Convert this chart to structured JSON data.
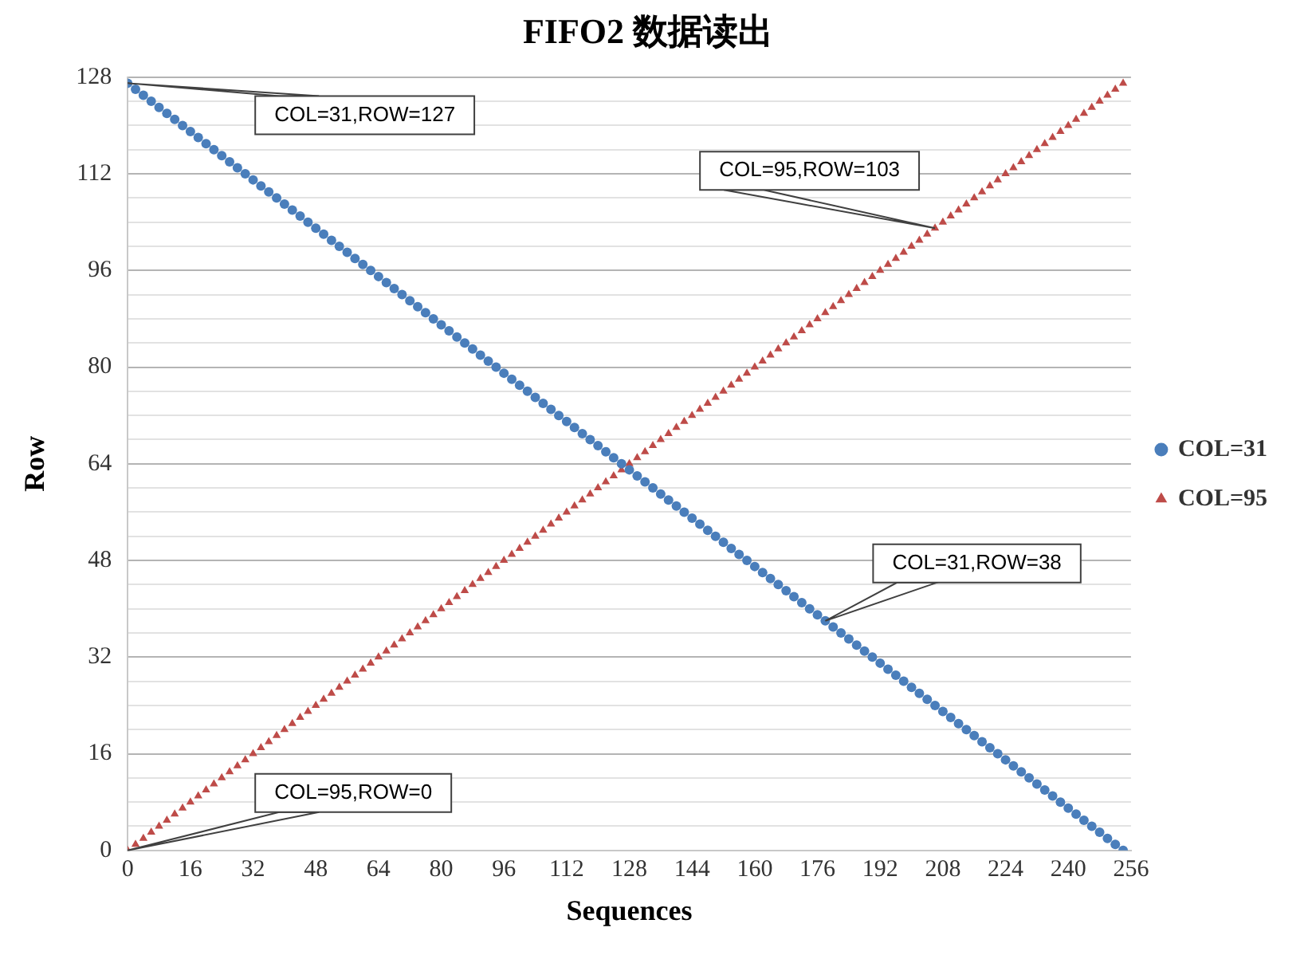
{
  "chart_data": {
    "type": "scatter",
    "title": "FIFO2 数据读出",
    "xlabel": "Sequences",
    "ylabel": "Row",
    "x": [
      0,
      2,
      4,
      6,
      8,
      10,
      12,
      14,
      16,
      18,
      20,
      22,
      24,
      26,
      28,
      30,
      32,
      34,
      36,
      38,
      40,
      42,
      44,
      46,
      48,
      50,
      52,
      54,
      56,
      58,
      60,
      62,
      64,
      66,
      68,
      70,
      72,
      74,
      76,
      78,
      80,
      82,
      84,
      86,
      88,
      90,
      92,
      94,
      96,
      98,
      100,
      102,
      104,
      106,
      108,
      110,
      112,
      114,
      116,
      118,
      120,
      122,
      124,
      126,
      128,
      130,
      132,
      134,
      136,
      138,
      140,
      142,
      144,
      146,
      148,
      150,
      152,
      154,
      156,
      158,
      160,
      162,
      164,
      166,
      168,
      170,
      172,
      174,
      176,
      178,
      180,
      182,
      184,
      186,
      188,
      190,
      192,
      194,
      196,
      198,
      200,
      202,
      204,
      206,
      208,
      210,
      212,
      214,
      216,
      218,
      220,
      222,
      224,
      226,
      228,
      230,
      232,
      234,
      236,
      238,
      240,
      242,
      244,
      246,
      248,
      250,
      252,
      254
    ],
    "series": [
      {
        "name": "COL=31",
        "color": "#4a7ebb",
        "marker": "circle",
        "values": [
          127,
          126,
          125,
          124,
          123,
          122,
          121,
          120,
          119,
          118,
          117,
          116,
          115,
          114,
          113,
          112,
          111,
          110,
          109,
          108,
          107,
          106,
          105,
          104,
          103,
          102,
          101,
          100,
          99,
          98,
          97,
          96,
          95,
          94,
          93,
          92,
          91,
          90,
          89,
          88,
          87,
          86,
          85,
          84,
          83,
          82,
          81,
          80,
          79,
          78,
          77,
          76,
          75,
          74,
          73,
          72,
          71,
          70,
          69,
          68,
          67,
          66,
          65,
          64,
          63,
          62,
          61,
          60,
          59,
          58,
          57,
          56,
          55,
          54,
          53,
          52,
          51,
          50,
          49,
          48,
          47,
          46,
          45,
          44,
          43,
          42,
          41,
          40,
          39,
          38,
          37,
          36,
          35,
          34,
          33,
          32,
          31,
          30,
          29,
          28,
          27,
          26,
          25,
          24,
          23,
          22,
          21,
          20,
          19,
          18,
          17,
          16,
          15,
          14,
          13,
          12,
          11,
          10,
          9,
          8,
          7,
          6,
          5,
          4,
          3,
          2,
          1,
          0
        ]
      },
      {
        "name": "COL=95",
        "color": "#be4b48",
        "marker": "triangle",
        "values": [
          0,
          1,
          2,
          3,
          4,
          5,
          6,
          7,
          8,
          9,
          10,
          11,
          12,
          13,
          14,
          15,
          16,
          17,
          18,
          19,
          20,
          21,
          22,
          23,
          24,
          25,
          26,
          27,
          28,
          29,
          30,
          31,
          32,
          33,
          34,
          35,
          36,
          37,
          38,
          39,
          40,
          41,
          42,
          43,
          44,
          45,
          46,
          47,
          48,
          49,
          50,
          51,
          52,
          53,
          54,
          55,
          56,
          57,
          58,
          59,
          60,
          61,
          62,
          63,
          64,
          65,
          66,
          67,
          68,
          69,
          70,
          71,
          72,
          73,
          74,
          75,
          76,
          77,
          78,
          79,
          80,
          81,
          82,
          83,
          84,
          85,
          86,
          87,
          88,
          89,
          90,
          91,
          92,
          93,
          94,
          95,
          96,
          97,
          98,
          99,
          100,
          101,
          102,
          103,
          104,
          105,
          106,
          107,
          108,
          109,
          110,
          111,
          112,
          113,
          114,
          115,
          116,
          117,
          118,
          119,
          120,
          121,
          122,
          123,
          124,
          125,
          126,
          127
        ]
      }
    ],
    "xlim": [
      0,
      256
    ],
    "xticks": [
      0,
      16,
      32,
      48,
      64,
      80,
      96,
      112,
      128,
      144,
      160,
      176,
      192,
      208,
      224,
      240,
      256
    ],
    "ylim": [
      0,
      128
    ],
    "yticks": [
      0,
      {
        "value": 4,
        "label": null
      },
      {
        "value": 8,
        "label": null
      },
      {
        "value": 12,
        "label": null
      },
      16,
      {
        "value": 20,
        "label": null
      },
      {
        "value": 24,
        "label": null
      },
      {
        "value": 28,
        "label": null
      },
      32,
      {
        "value": 36,
        "label": null
      },
      {
        "value": 40,
        "label": null
      },
      {
        "value": 44,
        "label": null
      },
      48,
      {
        "value": 52,
        "label": null
      },
      {
        "value": 56,
        "label": null
      },
      {
        "value": 60,
        "label": null
      },
      64,
      {
        "value": 68,
        "label": null
      },
      {
        "value": 72,
        "label": null
      },
      {
        "value": 76,
        "label": null
      },
      80,
      {
        "value": 84,
        "label": null
      },
      {
        "value": 88,
        "label": null
      },
      {
        "value": 92,
        "label": null
      },
      96,
      {
        "value": 100,
        "label": null
      },
      {
        "value": 104,
        "label": null
      },
      {
        "value": 108,
        "label": null
      },
      112,
      {
        "value": 116,
        "label": null
      },
      {
        "value": 120,
        "label": null
      },
      {
        "value": 124,
        "label": null
      },
      128
    ],
    "grid": "y",
    "legend": "right",
    "annotations": [
      {
        "text": "COL=31,ROW=127",
        "x": 0,
        "y": 127
      },
      {
        "text": "COL=95,ROW=103",
        "x": 206,
        "y": 103
      },
      {
        "text": "COL=31,ROW=38",
        "x": 178,
        "y": 38
      },
      {
        "text": "COL=95,ROW=0",
        "x": 0,
        "y": 0
      }
    ]
  }
}
